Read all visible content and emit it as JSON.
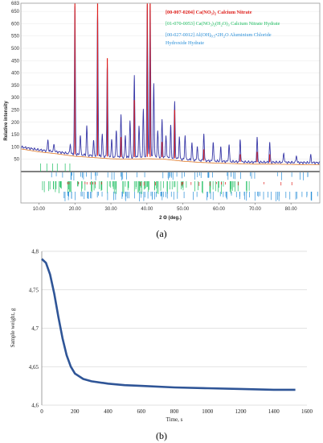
{
  "captions": {
    "a": "(a)",
    "b": "(b)"
  },
  "chart_data": [
    {
      "type": "line",
      "panel": "a",
      "xlabel": "2 Θ (deg.)",
      "ylabel": "Relative intensity",
      "xlim": [
        5,
        88
      ],
      "ylim": [
        0,
        683
      ],
      "x_ticks": [
        "10.00",
        "20.00",
        "30.00",
        "40.00",
        "50.00",
        "60.00",
        "70.00",
        "80.00"
      ],
      "y_ticks": [
        50,
        100,
        150,
        200,
        250,
        300,
        350,
        400,
        450,
        500,
        550,
        600,
        650,
        683
      ],
      "legend": [
        {
          "label": "[00-007-0204] Ca(NO3)2 Calcium Nitrate",
          "color": "#e0201c"
        },
        {
          "label": "[01-070-0053] Ca(NO3)2(H2O)3 Calcium Nitrate Hydrate",
          "color": "#1fbf62"
        },
        {
          "label": "[00-027-0012] Al(OH)0.5•2H2O Aluminium Chloride Hydroxide Hydrate",
          "color": "#2a8fd8"
        }
      ],
      "series": [
        {
          "name": "Observed pattern",
          "color": "#3a3aa8",
          "baseline": [
            [
              5,
              100
            ],
            [
              10,
              88
            ],
            [
              15,
              80
            ],
            [
              20,
              70
            ],
            [
              25,
              65
            ],
            [
              30,
              60
            ],
            [
              35,
              58
            ],
            [
              40,
              60
            ],
            [
              45,
              58
            ],
            [
              50,
              50
            ],
            [
              55,
              45
            ],
            [
              60,
              42
            ],
            [
              65,
              40
            ],
            [
              70,
              38
            ],
            [
              75,
              38
            ],
            [
              80,
              37
            ],
            [
              85,
              36
            ],
            [
              88,
              36
            ]
          ],
          "peaks": [
            [
              12.5,
              45
            ],
            [
              14.2,
              30
            ],
            [
              18.7,
              40
            ],
            [
              20.0,
              600
            ],
            [
              21.5,
              80
            ],
            [
              23.3,
              120
            ],
            [
              25.2,
              60
            ],
            [
              26.3,
              590
            ],
            [
              27.6,
              90
            ],
            [
              29.0,
              380
            ],
            [
              30.2,
              70
            ],
            [
              31.5,
              110
            ],
            [
              32.8,
              170
            ],
            [
              34.0,
              90
            ],
            [
              35.3,
              150
            ],
            [
              36.5,
              330
            ],
            [
              37.8,
              130
            ],
            [
              39.0,
              190
            ],
            [
              40.1,
              620
            ],
            [
              40.9,
              640
            ],
            [
              41.9,
              300
            ],
            [
              43.0,
              110
            ],
            [
              44.2,
              150
            ],
            [
              45.3,
              90
            ],
            [
              46.6,
              130
            ],
            [
              47.7,
              230
            ],
            [
              49.0,
              90
            ],
            [
              50.6,
              100
            ],
            [
              52.5,
              70
            ],
            [
              54.0,
              60
            ],
            [
              55.8,
              110
            ],
            [
              58.4,
              80
            ],
            [
              60.5,
              55
            ],
            [
              62.8,
              70
            ],
            [
              65.9,
              90
            ],
            [
              70.6,
              100
            ],
            [
              74.1,
              80
            ],
            [
              78.0,
              40
            ],
            [
              81.5,
              30
            ],
            [
              85.5,
              30
            ]
          ]
        },
        {
          "name": "Calcium Nitrate reference",
          "color": "#e0201c",
          "peaks": [
            [
              20.0,
              683
            ],
            [
              26.3,
              683
            ],
            [
              29.0,
              460
            ],
            [
              32.8,
              140
            ],
            [
              36.5,
              290
            ],
            [
              40.1,
              683
            ],
            [
              40.9,
              683
            ],
            [
              44.2,
              120
            ],
            [
              47.7,
              250
            ],
            [
              55.8,
              90
            ],
            [
              65.9,
              70
            ],
            [
              70.6,
              80
            ],
            [
              74.1,
              70
            ]
          ]
        }
      ]
    },
    {
      "type": "line",
      "panel": "b",
      "xlabel": "Time, s",
      "ylabel": "Sample weight, g",
      "xlim": [
        0,
        1600
      ],
      "ylim": [
        4.6,
        4.8
      ],
      "x_ticks": [
        0,
        200,
        400,
        600,
        800,
        1000,
        1200,
        1400,
        1600
      ],
      "y_ticks": [
        "4,6",
        "4,65",
        "4,7",
        "4,75",
        "4,8"
      ],
      "grid": "horizontal",
      "series": [
        {
          "name": "Sample weight",
          "color": "#2f5597",
          "x": [
            0,
            25,
            50,
            75,
            100,
            125,
            150,
            175,
            200,
            250,
            300,
            400,
            500,
            600,
            800,
            1000,
            1200,
            1400,
            1530
          ],
          "y": [
            4.79,
            4.785,
            4.77,
            4.745,
            4.715,
            4.687,
            4.665,
            4.65,
            4.641,
            4.634,
            4.631,
            4.628,
            4.626,
            4.625,
            4.623,
            4.622,
            4.621,
            4.62,
            4.62
          ]
        }
      ]
    }
  ]
}
